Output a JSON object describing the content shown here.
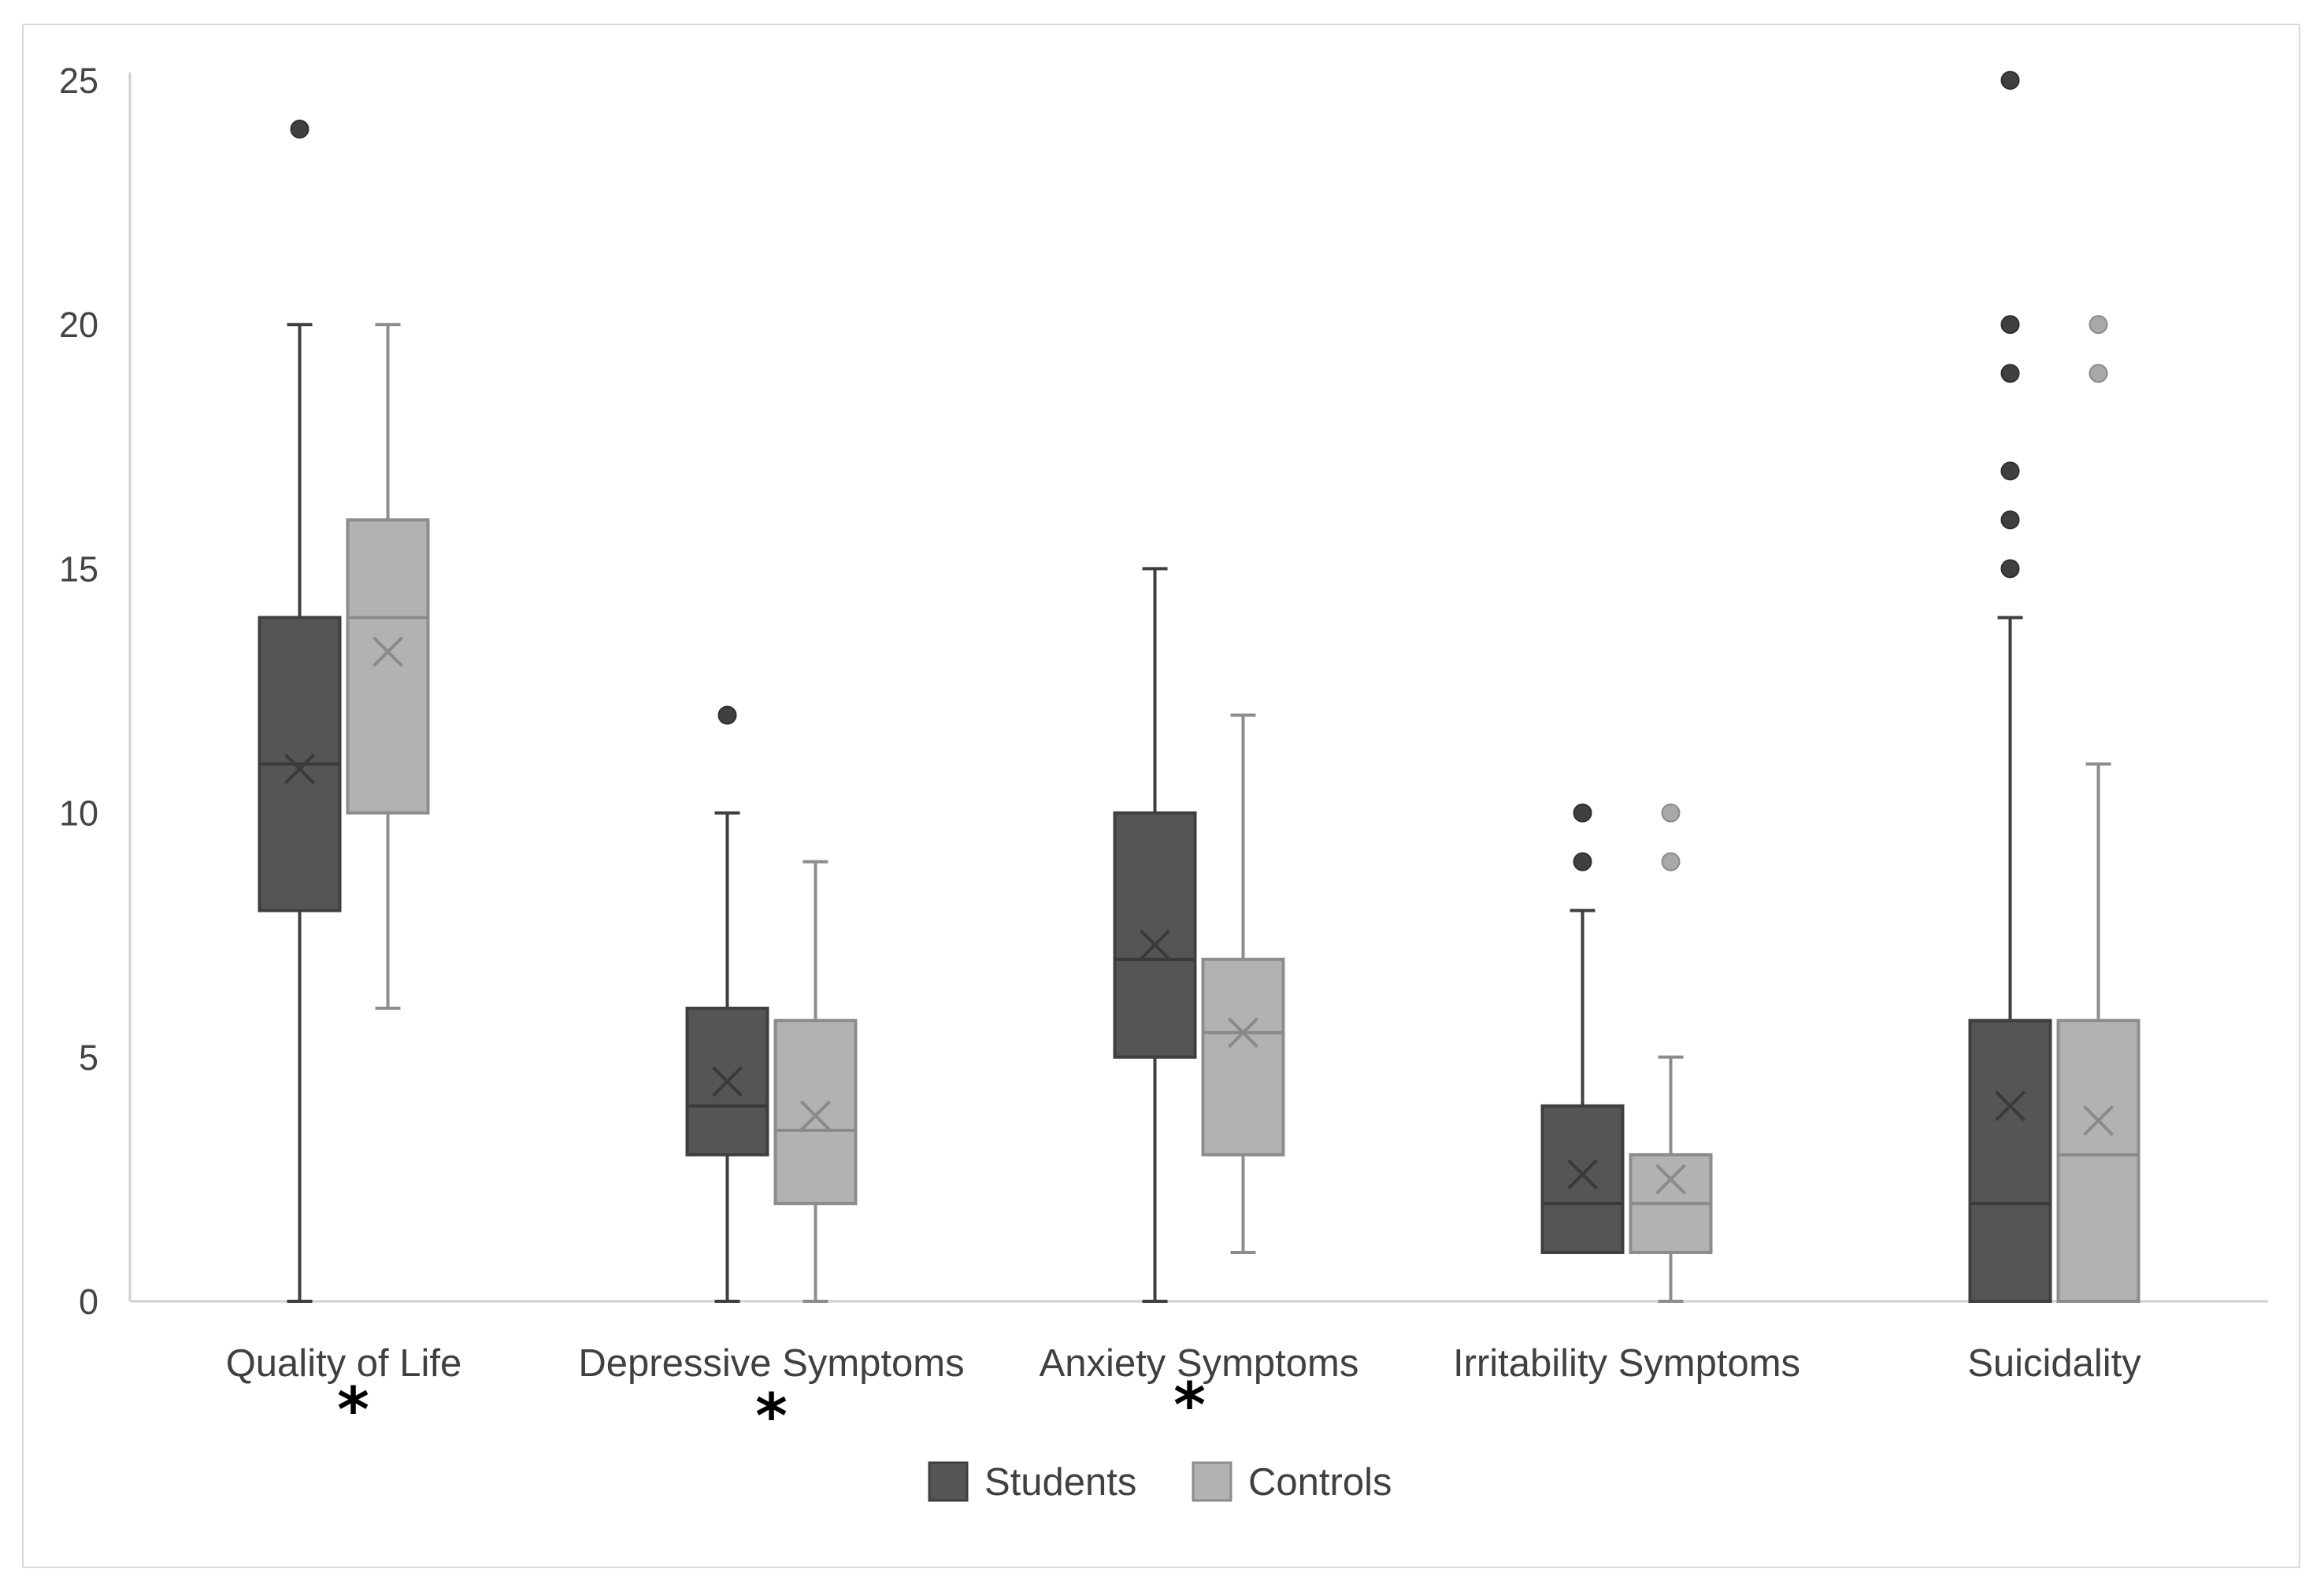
{
  "chart_data": {
    "type": "box",
    "title": "",
    "xlabel": "",
    "ylabel": "",
    "ylim": [
      0,
      25
    ],
    "yticks": [
      0,
      5,
      10,
      15,
      20,
      25
    ],
    "grid": false,
    "legend_position": "bottom-center",
    "categories": [
      "Quality of Life",
      "Depressive Symptoms",
      "Anxiety Symptoms",
      "Irritability Symptoms",
      "Suicidality"
    ],
    "significance_marks": [
      "*",
      "*",
      "*",
      "",
      ""
    ],
    "series": [
      {
        "name": "Students",
        "color": "#555555",
        "boxes": [
          {
            "min": 0,
            "q1": 8,
            "median": 11,
            "q3": 14,
            "max": 20,
            "mean": 10.9,
            "outliers": [
              24
            ]
          },
          {
            "min": 0,
            "q1": 3,
            "median": 4,
            "q3": 6,
            "max": 10,
            "mean": 4.5,
            "outliers": [
              12
            ]
          },
          {
            "min": 0,
            "q1": 5,
            "median": 7,
            "q3": 10,
            "max": 15,
            "mean": 7.3,
            "outliers": []
          },
          {
            "min": 1,
            "q1": 1,
            "median": 2,
            "q3": 4,
            "max": 8,
            "mean": 2.6,
            "outliers": [
              9,
              10
            ]
          },
          {
            "min": 0,
            "q1": 0,
            "median": 2,
            "q3": 5.75,
            "max": 14,
            "mean": 4.0,
            "outliers": [
              15,
              16,
              17,
              19,
              20,
              25
            ]
          }
        ]
      },
      {
        "name": "Controls",
        "color": "#b2b2b2",
        "boxes": [
          {
            "min": 6,
            "q1": 10,
            "median": 14,
            "q3": 16,
            "max": 20,
            "mean": 13.3,
            "outliers": []
          },
          {
            "min": 0,
            "q1": 2,
            "median": 3.5,
            "q3": 5.75,
            "max": 9,
            "mean": 3.8,
            "outliers": []
          },
          {
            "min": 1,
            "q1": 3,
            "median": 5.5,
            "q3": 7,
            "max": 12,
            "mean": 5.5,
            "outliers": []
          },
          {
            "min": 0,
            "q1": 1,
            "median": 2,
            "q3": 3,
            "max": 5,
            "mean": 2.5,
            "outliers": [
              9,
              10
            ]
          },
          {
            "min": 0,
            "q1": 0,
            "median": 3,
            "q3": 5.75,
            "max": 11,
            "mean": 3.7,
            "outliers": [
              19,
              20
            ]
          }
        ]
      }
    ]
  },
  "colors": {
    "students_fill": "#555555",
    "students_stroke": "#3f3f3f",
    "controls_fill": "#b2b2b2",
    "controls_stroke": "#8c8c8c",
    "axis": "#d0d0d0"
  }
}
